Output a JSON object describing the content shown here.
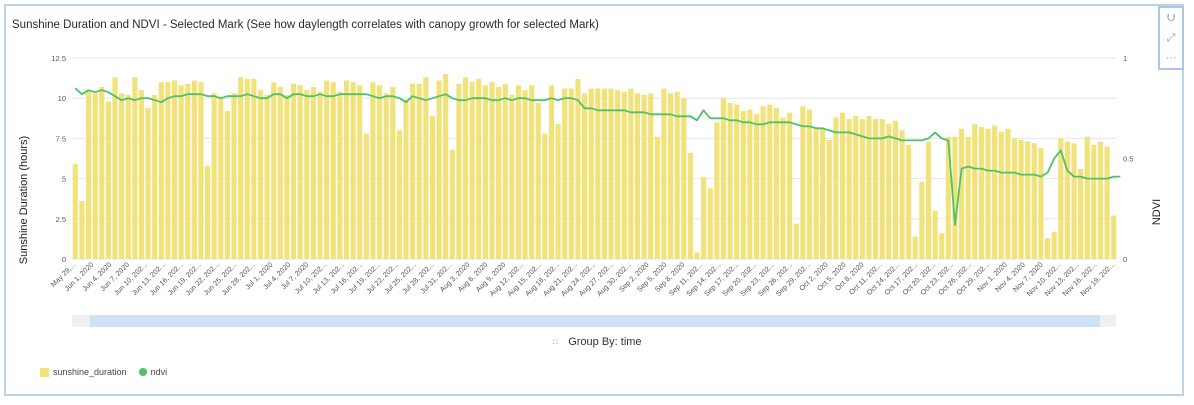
{
  "title": "Sunshine Duration and NDVI - Selected Mark (See how daylength correlates with canopy growth for selected Mark)",
  "toolbar": {
    "icons": [
      "chevron-double-down-icon",
      "expand-icon",
      "more-icon"
    ]
  },
  "group_by_label": "Group By: time",
  "colors": {
    "bar": "#f2e27a",
    "line": "#4ec26b",
    "frame": "#b8d4ea",
    "slider": "#cfe2f5"
  },
  "chart_data": {
    "type": "bar",
    "title": "Sunshine Duration and NDVI - Selected Mark (See how daylength correlates with canopy growth for selected Mark)",
    "xlabel": "",
    "ylabel": "Sunshine Duration (hours)",
    "y2label": "NDVI",
    "ylim": [
      0,
      12.5
    ],
    "y2lim": [
      0,
      1
    ],
    "yticks": [
      "0",
      "2.5",
      "5",
      "7.5",
      "10",
      "12.5"
    ],
    "y2ticks": [
      "0",
      "0.5",
      "1"
    ],
    "grid": true,
    "legend_position": "bottom-left",
    "legend": [
      "sunshine_duration",
      "ndvi"
    ],
    "x_tick_labels": [
      "May 29,...",
      "Jun 1, 2020",
      "Jun 4, 2020",
      "Jun 7, 2020",
      "Jun 10, 202...",
      "Jun 13, 202...",
      "Jun 16, 202...",
      "Jun 19, 202...",
      "Jun 22, 202...",
      "Jun 25, 202...",
      "Jun 28, 202...",
      "Jul 1, 2020",
      "Jul 4, 2020",
      "Jul 7, 2020",
      "Jul 10, 202...",
      "Jul 13, 202...",
      "Jul 16, 202...",
      "Jul 19, 202...",
      "Jul 22, 202...",
      "Jul 25, 202...",
      "Jul 28, 202...",
      "Jul 31, 202...",
      "Aug 3, 2020",
      "Aug 6, 2020",
      "Aug 9, 2020",
      "Aug 12, 202...",
      "Aug 15, 202...",
      "Aug 18, 202...",
      "Aug 21, 202...",
      "Aug 24, 202...",
      "Aug 27, 202...",
      "Aug 30, 202...",
      "Sep 2, 2020",
      "Sep 5, 2020",
      "Sep 8, 2020",
      "Sep 11, 202...",
      "Sep 14, 202...",
      "Sep 17, 202...",
      "Sep 20, 202...",
      "Sep 23, 202...",
      "Sep 26, 202...",
      "Sep 29, 202...",
      "Oct 2, 2020",
      "Oct 5, 2020",
      "Oct 8, 2020",
      "Oct 11, 202...",
      "Oct 14, 202...",
      "Oct 17, 202...",
      "Oct 20, 202...",
      "Oct 23, 202...",
      "Oct 26, 202...",
      "Oct 29, 202...",
      "Nov 1, 2020",
      "Nov 4, 2020",
      "Nov 7, 2020",
      "Nov 10, 202...",
      "Nov 13, 202...",
      "Nov 16, 202...",
      "Nov 19, 202..."
    ],
    "series": [
      {
        "name": "sunshine_duration",
        "type": "bar",
        "values": [
          5.9,
          3.6,
          10.5,
          10.3,
          10.7,
          9.8,
          11.3,
          10.3,
          10.2,
          11.3,
          10.5,
          9.4,
          10.2,
          11,
          11,
          11.1,
          10.8,
          10.9,
          11.1,
          11,
          5.8,
          10.3,
          10,
          9.2,
          10.3,
          11.3,
          11.2,
          11.2,
          10.5,
          10.2,
          11,
          10.7,
          10.2,
          10.9,
          10.8,
          10.5,
          10.7,
          10.4,
          11.1,
          11,
          10.4,
          11.1,
          11,
          10.8,
          7.8,
          11,
          10.8,
          10.3,
          10.7,
          8,
          9.9,
          10.9,
          10.9,
          11.3,
          8.9,
          11.1,
          11.5,
          6.8,
          10.9,
          11.3,
          11,
          11.2,
          10.8,
          11,
          10.7,
          10.9,
          10.2,
          10.8,
          10.5,
          10.8,
          9.7,
          7.8,
          10.8,
          8.4,
          10.6,
          10.6,
          11.2,
          10.3,
          10.6,
          10.6,
          10.6,
          10.6,
          10.5,
          10.4,
          10.6,
          10.3,
          10.2,
          10.3,
          7.6,
          10.6,
          10.3,
          10.4,
          10,
          6.6,
          0.4,
          5.1,
          4.4,
          8.5,
          10,
          9.7,
          9.6,
          9.2,
          9.3,
          9,
          9.5,
          9.6,
          9.4,
          8.8,
          9.1,
          2.2,
          9.5,
          9.3,
          8.2,
          8.1,
          7.4,
          8.8,
          9.1,
          8.7,
          8.9,
          8.7,
          8.9,
          8.7,
          8.7,
          8.4,
          8.6,
          8,
          7.1,
          1.4,
          4.8,
          7.3,
          3,
          1.6,
          7.6,
          7.6,
          8.1,
          7.6,
          8.4,
          8.2,
          8.1,
          8.3,
          7.9,
          8.1,
          7.5,
          7.4,
          7.3,
          7.2,
          6.9,
          1.3,
          1.7,
          7.5,
          7.3,
          7.2,
          5.6,
          7.6,
          7.1,
          7.3,
          7,
          2.7
        ]
      },
      {
        "name": "ndvi",
        "type": "line",
        "axis": "right",
        "values": [
          0.85,
          0.82,
          0.84,
          0.83,
          0.84,
          0.83,
          0.81,
          0.79,
          0.8,
          0.79,
          0.8,
          0.8,
          0.79,
          0.78,
          0.8,
          0.81,
          0.81,
          0.82,
          0.82,
          0.82,
          0.81,
          0.81,
          0.8,
          0.81,
          0.81,
          0.81,
          0.82,
          0.81,
          0.8,
          0.8,
          0.82,
          0.82,
          0.8,
          0.82,
          0.82,
          0.81,
          0.81,
          0.82,
          0.81,
          0.81,
          0.82,
          0.82,
          0.82,
          0.82,
          0.82,
          0.81,
          0.8,
          0.81,
          0.81,
          0.8,
          0.78,
          0.81,
          0.8,
          0.79,
          0.8,
          0.81,
          0.82,
          0.8,
          0.79,
          0.79,
          0.8,
          0.8,
          0.8,
          0.79,
          0.79,
          0.8,
          0.79,
          0.8,
          0.8,
          0.79,
          0.79,
          0.79,
          0.8,
          0.79,
          0.8,
          0.8,
          0.79,
          0.75,
          0.75,
          0.74,
          0.74,
          0.74,
          0.74,
          0.74,
          0.73,
          0.73,
          0.73,
          0.72,
          0.72,
          0.72,
          0.72,
          0.71,
          0.71,
          0.71,
          0.69,
          0.74,
          0.7,
          0.7,
          0.7,
          0.69,
          0.69,
          0.68,
          0.68,
          0.67,
          0.67,
          0.68,
          0.68,
          0.68,
          0.68,
          0.67,
          0.66,
          0.66,
          0.65,
          0.65,
          0.64,
          0.63,
          0.63,
          0.63,
          0.62,
          0.61,
          0.6,
          0.6,
          0.6,
          0.61,
          0.6,
          0.59,
          0.59,
          0.59,
          0.59,
          0.6,
          0.63,
          0.6,
          0.59,
          0.17,
          0.45,
          0.46,
          0.45,
          0.45,
          0.44,
          0.44,
          0.43,
          0.43,
          0.43,
          0.42,
          0.42,
          0.42,
          0.41,
          0.43,
          0.5,
          0.54,
          0.44,
          0.41,
          0.41,
          0.4,
          0.4,
          0.4,
          0.4,
          0.41,
          0.41
        ]
      }
    ]
  }
}
